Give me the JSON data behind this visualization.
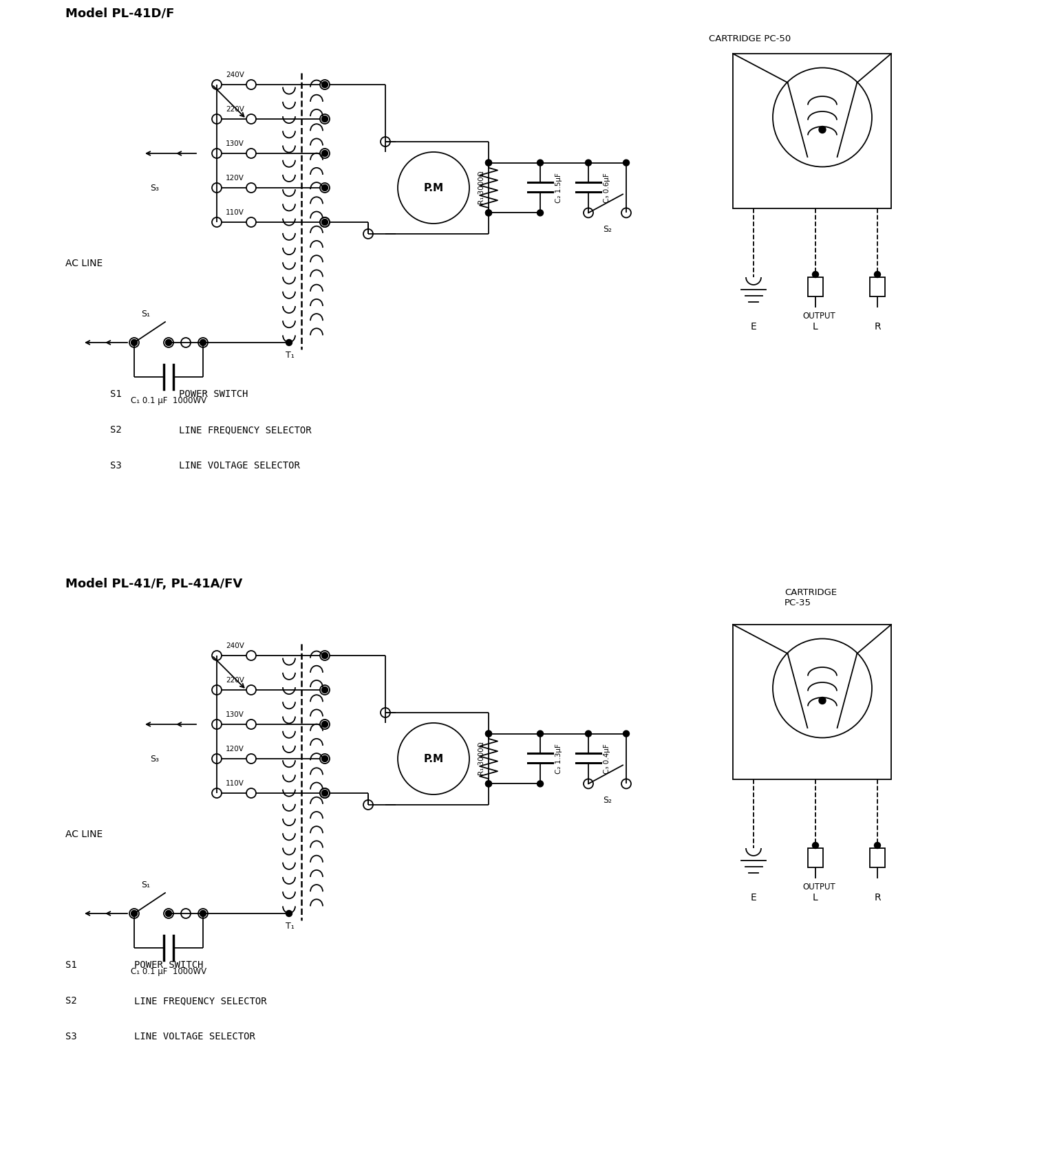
{
  "bg_color": "#ffffff",
  "line_color": "#000000",
  "title1": "Model PL-41D/F",
  "title2": "Model PL-41/F, PL-41A/FV",
  "legend1": [
    [
      "S1",
      "POWER SWITCH"
    ],
    [
      "S2",
      "LINE FREQUENCY SELECTOR"
    ],
    [
      "S3",
      "LINE VOLTAGE SELECTOR"
    ]
  ],
  "legend2": [
    [
      "S1",
      "POWER SWITCH"
    ],
    [
      "S2",
      "LINE FREQUENCY SELECTOR"
    ],
    [
      "S3",
      "LINE VOLTAGE SELECTOR"
    ]
  ],
  "cartridge1": "CARTRIDGE PC-50",
  "cartridge2": "CARTRIDGE\nPC-35",
  "cap1_label": "C₁ 0.1 μF  1000WV",
  "cap2_label1": "C₂ 1.5μF",
  "cap3_label1": "C₃ 0.6μF",
  "cap2_label2": "C₂ 1.3μF",
  "cap3_label2": "C₃ 0.4μF",
  "r1_label": "R₁ 3000Ω",
  "T1_label": "T₁",
  "pm_label": "P.M",
  "ac_line": "AC LINE",
  "output_label": "OUTPUT",
  "E_label": "E",
  "L_label": "L",
  "R_label": "R",
  "voltages": [
    "240V",
    "220V",
    "130V",
    "120V",
    "110V"
  ],
  "S1_label": "S₁",
  "S2_label": "S₂",
  "S3_label": "S₃"
}
